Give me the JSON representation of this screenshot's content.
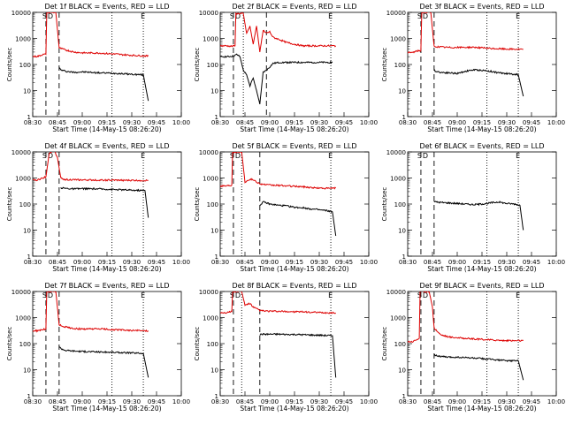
{
  "figure": {
    "xlabel": "Start Time (14-May-15 08:26:20)",
    "ylabel": "Counts/sec",
    "x_ticks": [
      "08:30",
      "08:45",
      "09:00",
      "09:15",
      "09:30",
      "09:45",
      "10:00"
    ],
    "y_ticks": [
      "1",
      "10",
      "100",
      "1000",
      "10000"
    ],
    "panels": [
      "Det 1f BLACK = Events, RED = LLD",
      "Det 2f BLACK = Events, RED = LLD",
      "Det 3f BLACK = Events, RED = LLD",
      "Det 4f BLACK = Events, RED = LLD",
      "Det 5f BLACK = Events, RED = LLD",
      "Det 6f BLACK = Events, RED = LLD",
      "Det 7f BLACK = Events, RED = LLD",
      "Det 8f BLACK = Events, RED = LLD",
      "Det 9f BLACK = Events, RED = LLD"
    ],
    "markers": {
      "dashed": "S",
      "circle": "D",
      "dotted": "E"
    },
    "colors": {
      "events": "#000000",
      "lld": "#dd0000"
    }
  },
  "chart_data": [
    {
      "type": "line",
      "title": "Det 1f BLACK = Events, RED = LLD",
      "xlabel": "Start Time (14-May-15 08:26:20)",
      "ylabel": "Counts/sec",
      "x_unit": "minutes after 08:30",
      "xlim": [
        0,
        90
      ],
      "ylog": true,
      "ylim": [
        1,
        10000
      ],
      "series": [
        {
          "name": "Events",
          "color": "#000000",
          "x": [
            16,
            17,
            20,
            25,
            30,
            40,
            50,
            60,
            67,
            70
          ],
          "y": [
            75,
            62,
            55,
            50,
            52,
            48,
            46,
            42,
            40,
            4
          ]
        },
        {
          "name": "LLD",
          "color": "#dd0000",
          "x": [
            0,
            3,
            6,
            8,
            8.5,
            14,
            16,
            20,
            25,
            30,
            40,
            50,
            60,
            67,
            70
          ],
          "y": [
            200,
            205,
            240,
            245,
            10000,
            10000,
            430,
            360,
            300,
            280,
            275,
            250,
            225,
            215,
            210
          ]
        }
      ],
      "vlines": {
        "dashed": [
          8,
          16
        ],
        "dotted": [
          48,
          67
        ]
      }
    },
    {
      "type": "line",
      "title": "Det 2f BLACK = Events, RED = LLD",
      "xlabel": "Start Time (14-May-15 08:26:20)",
      "ylabel": "Counts/sec",
      "x_unit": "minutes after 08:30",
      "xlim": [
        0,
        90
      ],
      "ylog": true,
      "ylim": [
        1,
        10000
      ],
      "series": [
        {
          "name": "Events",
          "color": "#000000",
          "x": [
            0,
            5,
            8,
            10,
            12,
            14,
            16,
            18,
            20,
            22,
            24,
            26,
            28,
            30,
            32,
            36,
            40,
            45,
            50,
            55,
            60,
            65,
            68
          ],
          "y": [
            200,
            200,
            210,
            240,
            200,
            60,
            40,
            15,
            30,
            10,
            3,
            50,
            60,
            80,
            110,
            120,
            120,
            120,
            120,
            120,
            120,
            120,
            120
          ]
        },
        {
          "name": "LLD",
          "color": "#dd0000",
          "x": [
            0,
            4,
            7,
            9,
            9.5,
            14,
            16,
            18,
            20,
            22,
            24,
            26,
            28,
            30,
            32,
            36,
            40,
            45,
            50,
            60,
            68,
            70
          ],
          "y": [
            520,
            520,
            500,
            520,
            9000,
            9000,
            1500,
            3000,
            600,
            3000,
            300,
            2000,
            1600,
            1800,
            1100,
            900,
            700,
            600,
            520,
            520,
            520,
            520
          ]
        }
      ],
      "vlines": {
        "dashed": [
          8,
          28
        ],
        "dotted": [
          14,
          67
        ]
      }
    },
    {
      "type": "line",
      "title": "Det 3f BLACK = Events, RED = LLD",
      "xlabel": "Start Time (14-May-15 08:26:20)",
      "ylabel": "Counts/sec",
      "x_unit": "minutes after 08:30",
      "xlim": [
        0,
        90
      ],
      "ylog": true,
      "ylim": [
        1,
        10000
      ],
      "series": [
        {
          "name": "Events",
          "color": "#000000",
          "x": [
            16,
            17,
            20,
            25,
            30,
            35,
            40,
            45,
            50,
            55,
            60,
            65,
            67,
            70
          ],
          "y": [
            60,
            55,
            50,
            48,
            45,
            55,
            62,
            60,
            55,
            48,
            45,
            42,
            40,
            6
          ]
        },
        {
          "name": "LLD",
          "color": "#dd0000",
          "x": [
            0,
            3,
            6,
            8,
            8.5,
            14,
            16,
            20,
            25,
            30,
            40,
            50,
            60,
            70
          ],
          "y": [
            280,
            290,
            330,
            340,
            10000,
            10000,
            490,
            470,
            450,
            450,
            460,
            410,
            390,
            380
          ]
        }
      ],
      "vlines": {
        "dashed": [
          8,
          16
        ],
        "dotted": [
          48,
          67
        ]
      }
    },
    {
      "type": "line",
      "title": "Det 4f BLACK = Events, RED = LLD",
      "xlabel": "Start Time (14-May-15 08:26:20)",
      "ylabel": "Counts/sec",
      "x_unit": "minutes after 08:30",
      "xlim": [
        0,
        90
      ],
      "ylog": true,
      "ylim": [
        1,
        10000
      ],
      "series": [
        {
          "name": "Events",
          "color": "#000000",
          "x": [
            17,
            18,
            20,
            25,
            30,
            40,
            50,
            60,
            68,
            70
          ],
          "y": [
            420,
            410,
            400,
            380,
            390,
            380,
            360,
            340,
            330,
            30
          ]
        },
        {
          "name": "LLD",
          "color": "#dd0000",
          "x": [
            0,
            3,
            6,
            8,
            10,
            13,
            15,
            17,
            18,
            20,
            25,
            30,
            40,
            50,
            60,
            70
          ],
          "y": [
            820,
            840,
            1000,
            1100,
            9000,
            12000,
            6000,
            1000,
            900,
            880,
            850,
            840,
            830,
            820,
            810,
            800
          ]
        }
      ],
      "vlines": {
        "dashed": [
          8,
          16
        ],
        "dotted": [
          48,
          67
        ]
      }
    },
    {
      "type": "line",
      "title": "Det 5f BLACK = Events, RED = LLD",
      "xlabel": "Start Time (14-May-15 08:26:20)",
      "ylabel": "Counts/sec",
      "x_unit": "minutes after 08:30",
      "xlim": [
        0,
        90
      ],
      "ylog": true,
      "ylim": [
        1,
        10000
      ],
      "series": [
        {
          "name": "Events",
          "color": "#000000",
          "x": [
            24,
            26,
            28,
            30,
            35,
            40,
            45,
            50,
            55,
            60,
            65,
            68,
            70
          ],
          "y": [
            90,
            120,
            110,
            100,
            90,
            85,
            75,
            72,
            65,
            60,
            55,
            50,
            6
          ]
        },
        {
          "name": "LLD",
          "color": "#dd0000",
          "x": [
            0,
            3,
            6,
            7,
            7.5,
            13,
            15,
            18,
            20,
            24,
            28,
            30,
            35,
            40,
            45,
            50,
            55,
            60,
            65,
            70
          ],
          "y": [
            500,
            500,
            520,
            530,
            10000,
            10000,
            700,
            900,
            850,
            600,
            550,
            530,
            520,
            500,
            480,
            460,
            430,
            410,
            400,
            410
          ]
        }
      ],
      "vlines": {
        "dashed": [
          8,
          24
        ],
        "dotted": [
          13,
          67
        ]
      }
    },
    {
      "type": "line",
      "title": "Det 6f BLACK = Events, RED = LLD",
      "xlabel": "Start Time (14-May-15 08:26:20)",
      "ylabel": "Counts/sec",
      "x_unit": "minutes after 08:30",
      "xlim": [
        0,
        90
      ],
      "ylog": true,
      "ylim": [
        1,
        10000
      ],
      "series": [
        {
          "name": "Events",
          "color": "#000000",
          "x": [
            16,
            17,
            20,
            25,
            30,
            35,
            40,
            45,
            50,
            55,
            60,
            65,
            68,
            70
          ],
          "y": [
            130,
            120,
            115,
            110,
            105,
            100,
            95,
            100,
            110,
            120,
            105,
            100,
            90,
            10
          ]
        }
      ],
      "vlines": {
        "dashed": [
          8,
          16
        ],
        "dotted": [
          48,
          67
        ]
      }
    },
    {
      "type": "line",
      "title": "Det 7f BLACK = Events, RED = LLD",
      "xlabel": "Start Time (14-May-15 08:26:20)",
      "ylabel": "Counts/sec",
      "x_unit": "minutes after 08:30",
      "xlim": [
        0,
        90
      ],
      "ylog": true,
      "ylim": [
        1,
        10000
      ],
      "series": [
        {
          "name": "Events",
          "color": "#000000",
          "x": [
            16,
            17,
            20,
            25,
            30,
            40,
            50,
            60,
            67,
            70
          ],
          "y": [
            80,
            65,
            55,
            52,
            50,
            48,
            46,
            44,
            42,
            5
          ]
        },
        {
          "name": "LLD",
          "color": "#dd0000",
          "x": [
            0,
            3,
            6,
            8,
            8.5,
            14,
            16,
            20,
            25,
            30,
            40,
            50,
            60,
            70
          ],
          "y": [
            310,
            310,
            350,
            360,
            10000,
            10000,
            520,
            430,
            380,
            360,
            370,
            340,
            320,
            310
          ]
        }
      ],
      "vlines": {
        "dashed": [
          8,
          16
        ],
        "dotted": [
          48,
          67
        ]
      }
    },
    {
      "type": "line",
      "title": "Det 8f BLACK = Events, RED = LLD",
      "xlabel": "Start Time (14-May-15 08:26:20)",
      "ylabel": "Counts/sec",
      "x_unit": "minutes after 08:30",
      "xlim": [
        0,
        90
      ],
      "ylog": true,
      "ylim": [
        1,
        10000
      ],
      "series": [
        {
          "name": "Events",
          "color": "#000000",
          "x": [
            24,
            25,
            30,
            35,
            40,
            45,
            50,
            55,
            60,
            65,
            68,
            70
          ],
          "y": [
            220,
            230,
            230,
            230,
            225,
            225,
            220,
            215,
            210,
            205,
            200,
            5
          ]
        },
        {
          "name": "LLD",
          "color": "#dd0000",
          "x": [
            0,
            3,
            6,
            7,
            7.5,
            13,
            15,
            18,
            20,
            24,
            26,
            30,
            40,
            50,
            60,
            70
          ],
          "y": [
            1550,
            1550,
            1650,
            1700,
            10000,
            10000,
            3000,
            3500,
            2500,
            1900,
            1800,
            1750,
            1700,
            1650,
            1550,
            1500
          ]
        }
      ],
      "vlines": {
        "dashed": [
          8,
          24
        ],
        "dotted": [
          13,
          67
        ]
      }
    },
    {
      "type": "line",
      "title": "Det 9f BLACK = Events, RED = LLD",
      "xlabel": "Start Time (14-May-15 08:26:20)",
      "ylabel": "Counts/sec",
      "x_unit": "minutes after 08:30",
      "xlim": [
        0,
        90
      ],
      "ylog": true,
      "ylim": [
        1,
        10000
      ],
      "series": [
        {
          "name": "Events",
          "color": "#000000",
          "x": [
            16,
            17,
            20,
            25,
            30,
            40,
            50,
            60,
            67,
            70
          ],
          "y": [
            40,
            35,
            32,
            30,
            30,
            28,
            25,
            22,
            22,
            4
          ]
        },
        {
          "name": "LLD",
          "color": "#dd0000",
          "x": [
            0,
            3,
            5,
            7,
            7.5,
            13,
            15,
            16,
            20,
            25,
            30,
            40,
            50,
            60,
            70
          ],
          "y": [
            120,
            120,
            140,
            160,
            10000,
            10000,
            2500,
            400,
            220,
            180,
            170,
            150,
            140,
            130,
            130
          ]
        }
      ],
      "vlines": {
        "dashed": [
          8,
          16
        ],
        "dotted": [
          48,
          67
        ]
      }
    }
  ]
}
